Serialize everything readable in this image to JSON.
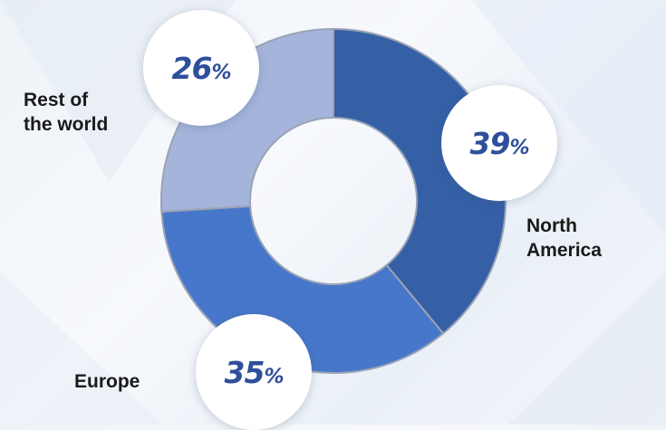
{
  "chart_data": {
    "type": "pie",
    "variant": "donut",
    "categories": [
      "North America",
      "Europe",
      "Rest of the world"
    ],
    "values": [
      39,
      35,
      26
    ],
    "value_labels": [
      "39",
      "35",
      "26"
    ],
    "unit": "%",
    "colors": [
      "#3560a6",
      "#4777ca",
      "#a5b4da"
    ],
    "label_lines": {
      "north_america": [
        "North",
        "America"
      ],
      "europe": [
        "Europe"
      ],
      "rest": [
        "Rest of",
        "the world"
      ]
    }
  }
}
